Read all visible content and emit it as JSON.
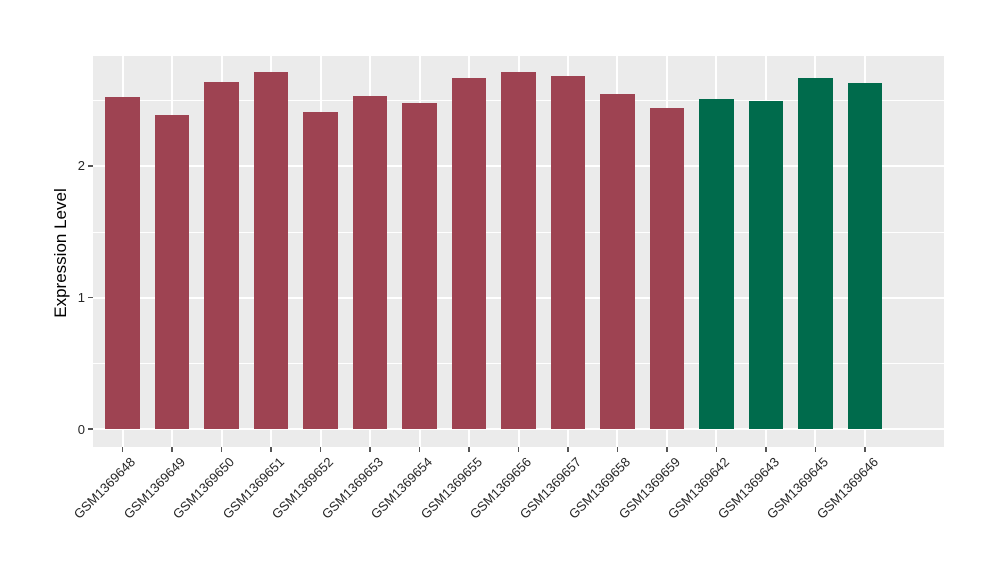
{
  "chart_data": {
    "type": "bar",
    "title": "",
    "xlabel": "",
    "ylabel": "Expression Level",
    "categories": [
      "GSM1369648",
      "GSM1369649",
      "GSM1369650",
      "GSM1369651",
      "GSM1369652",
      "GSM1369653",
      "GSM1369654",
      "GSM1369655",
      "GSM1369656",
      "GSM1369657",
      "GSM1369658",
      "GSM1369659",
      "GSM1369642",
      "GSM1369643",
      "GSM1369645",
      "GSM1369646"
    ],
    "values": [
      2.52,
      2.39,
      2.64,
      2.71,
      2.41,
      2.53,
      2.48,
      2.67,
      2.71,
      2.68,
      2.55,
      2.44,
      2.51,
      2.49,
      2.67,
      2.63
    ],
    "bar_colors": [
      "#9E4352",
      "#9E4352",
      "#9E4352",
      "#9E4352",
      "#9E4352",
      "#9E4352",
      "#9E4352",
      "#9E4352",
      "#9E4352",
      "#9E4352",
      "#9E4352",
      "#9E4352",
      "#006B4C",
      "#006B4C",
      "#006B4C",
      "#006B4C"
    ],
    "yticks": [
      0,
      1,
      2
    ],
    "minor_gridlines": [
      0.5,
      1.5,
      2.5
    ],
    "ylim": [
      -0.135,
      2.835
    ],
    "grid": true,
    "legend": "none",
    "colors": {
      "panel_background": "#EBEBEB",
      "gridline": "#FFFFFF",
      "axis_text": "#262626",
      "axis_title": "#000000",
      "tick_mark": "#555555",
      "bar_red": "#9E4352",
      "bar_green": "#006B4C"
    }
  }
}
